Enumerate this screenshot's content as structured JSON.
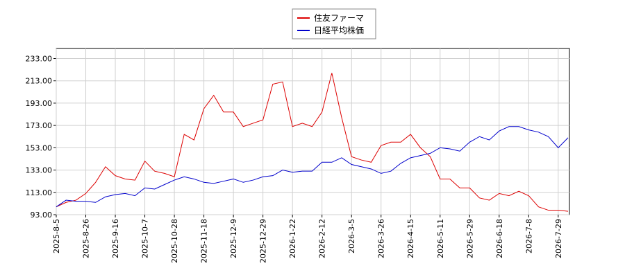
{
  "chart_data": {
    "type": "line",
    "categories": [
      "2025-8-5",
      null,
      null,
      "2025-8-26",
      null,
      null,
      "2025-9-16",
      null,
      null,
      "2025-10-7",
      null,
      null,
      "2025-10-28",
      null,
      null,
      "2025-11-18",
      null,
      null,
      "2025-12-9",
      null,
      null,
      "2025-12-29",
      null,
      null,
      "2026-1-22",
      null,
      null,
      "2026-2-12",
      null,
      null,
      "2026-3-5",
      null,
      null,
      "2026-3-26",
      null,
      null,
      "2026-4-15",
      null,
      null,
      "2026-5-11",
      null,
      null,
      "2026-5-29",
      null,
      null,
      "2026-6-18",
      null,
      null,
      "2026-7-8",
      null,
      null,
      "2026-7-29",
      null
    ],
    "series": [
      {
        "name": "住友ファーマ",
        "color": "#dd0000",
        "values": [
          100,
          104,
          106,
          112,
          122,
          136,
          128,
          125,
          124,
          141,
          132,
          130,
          127,
          165,
          160,
          188,
          200,
          185,
          185,
          172,
          175,
          178,
          210,
          212,
          172,
          175,
          172,
          185,
          220,
          180,
          145,
          142,
          140,
          155,
          158,
          158,
          165,
          153,
          145,
          125,
          125,
          117,
          117,
          108,
          106,
          112,
          110,
          114,
          110,
          100,
          97,
          97,
          96
        ]
      },
      {
        "name": "日経平均株価",
        "color": "#0000cc",
        "values": [
          100,
          106,
          105,
          105,
          104,
          109,
          111,
          112,
          110,
          117,
          116,
          120,
          124,
          127,
          125,
          122,
          121,
          123,
          125,
          122,
          124,
          127,
          128,
          133,
          131,
          132,
          132,
          140,
          140,
          144,
          138,
          136,
          134,
          130,
          132,
          139,
          144,
          146,
          148,
          153,
          152,
          150,
          158,
          163,
          160,
          168,
          172,
          172,
          169,
          167,
          163,
          153,
          162
        ]
      }
    ],
    "ylim": [
      93,
      242
    ],
    "yticks": [
      {
        "value": 93,
        "label": "93.00"
      },
      {
        "value": 113,
        "label": "113.00"
      },
      {
        "value": 133,
        "label": "133.00"
      },
      {
        "value": 153,
        "label": "153.00"
      },
      {
        "value": 173,
        "label": "173.00"
      },
      {
        "value": 193,
        "label": "193.00"
      },
      {
        "value": 213,
        "label": "213.00"
      },
      {
        "value": 233,
        "label": "233.00"
      }
    ],
    "grid": true,
    "legend": "top"
  }
}
